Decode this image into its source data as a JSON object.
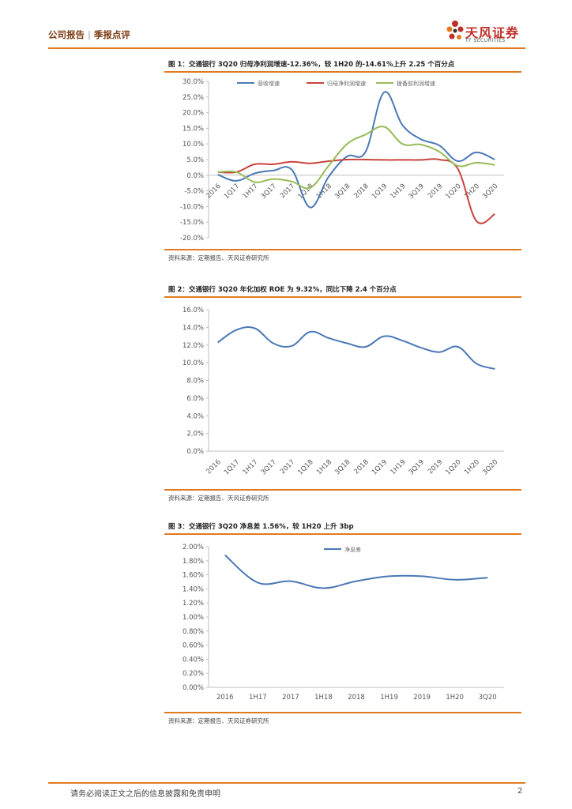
{
  "header": {
    "report_type": "公司报告",
    "separator": "|",
    "sub_type": "季报点评"
  },
  "logo": {
    "name": "天风证券",
    "sub": "TF SECURITIES"
  },
  "figures": [
    {
      "title": "图 1：交通银行 3Q20 归母净利润增速-12.36%，较 1H20 的-14.61%上升 2.25 个百分点",
      "source": "资料来源：定期报告、天风证券研究所"
    },
    {
      "title": "图 2：交通银行 3Q20 年化加权 ROE 为 9.32%，同比下降 2.4 个百分点",
      "source": "资料来源：定期报告、天风证券研究所"
    },
    {
      "title": "图 3：交通银行 3Q20 净息差 1.56%，较 1H20 上升 3bp",
      "source": "资料来源：定期报告、天风证券研究所"
    }
  ],
  "chart_data": [
    {
      "type": "line",
      "categories": [
        "2016",
        "1Q17",
        "1H17",
        "3Q17",
        "2017",
        "1Q18",
        "1H18",
        "3Q18",
        "2018",
        "1Q19",
        "1H19",
        "3Q19",
        "2019",
        "1Q20",
        "1H20",
        "3Q20"
      ],
      "series": [
        {
          "name": "营收增速",
          "color": "#4a78b5",
          "values": [
            0.2,
            -1.8,
            0.6,
            1.5,
            1.8,
            -10.3,
            -0.5,
            6.0,
            7.5,
            26.5,
            16.0,
            11.5,
            9.5,
            4.5,
            7.3,
            5.0
          ]
        },
        {
          "name": "归母净利润增速",
          "color": "#c9433e",
          "values": [
            1.0,
            1.0,
            3.5,
            3.5,
            4.3,
            3.8,
            4.5,
            5.0,
            5.0,
            4.9,
            4.9,
            4.9,
            5.0,
            2.0,
            -14.6,
            -12.4
          ]
        },
        {
          "name": "拨备前利润增速",
          "color": "#98bb58",
          "values": [
            1.0,
            1.0,
            -2.2,
            -1.2,
            -2.0,
            -4.0,
            3.0,
            10.0,
            13.0,
            15.5,
            10.0,
            9.8,
            7.5,
            3.0,
            4.0,
            3.3
          ]
        }
      ],
      "yticks": [
        "30.0%",
        "25.0%",
        "20.0%",
        "15.0%",
        "10.0%",
        "5.0%",
        "0.0%",
        "-5.0%",
        "-10.0%",
        "-15.0%",
        "-20.0%"
      ],
      "ylim": [
        -20,
        30
      ]
    },
    {
      "type": "line",
      "categories": [
        "2016",
        "1Q17",
        "1H17",
        "3Q17",
        "2017",
        "1Q18",
        "1H18",
        "3Q18",
        "2018",
        "1Q19",
        "1H19",
        "3Q19",
        "2019",
        "1Q20",
        "1H20",
        "3Q20"
      ],
      "series": [
        {
          "name": "ROE",
          "color": "#4a78b5",
          "values": [
            12.3,
            13.7,
            13.9,
            12.2,
            11.9,
            13.5,
            12.8,
            12.2,
            11.8,
            13.0,
            12.5,
            11.7,
            11.2,
            11.8,
            9.9,
            9.3
          ]
        }
      ],
      "yticks": [
        "16.0%",
        "14.0%",
        "12.0%",
        "10.0%",
        "8.0%",
        "6.0%",
        "4.0%",
        "2.0%",
        "0.0%"
      ],
      "ylim": [
        0,
        16
      ]
    },
    {
      "type": "line",
      "categories": [
        "2016",
        "1H17",
        "2017",
        "1H18",
        "2018",
        "1H19",
        "2019",
        "1H20",
        "3Q20"
      ],
      "series": [
        {
          "name": "净息差",
          "color": "#4a78b5",
          "values": [
            1.88,
            1.49,
            1.51,
            1.41,
            1.51,
            1.58,
            1.58,
            1.53,
            1.56
          ]
        }
      ],
      "yticks": [
        "2.00%",
        "1.80%",
        "1.60%",
        "1.40%",
        "1.20%",
        "1.00%",
        "0.80%",
        "0.60%",
        "0.40%",
        "0.20%",
        "0.00%"
      ],
      "ylim": [
        0,
        2
      ]
    }
  ],
  "footer": {
    "disclaimer": "请务必阅读正文之后的信息披露和免责申明",
    "page": "2"
  }
}
